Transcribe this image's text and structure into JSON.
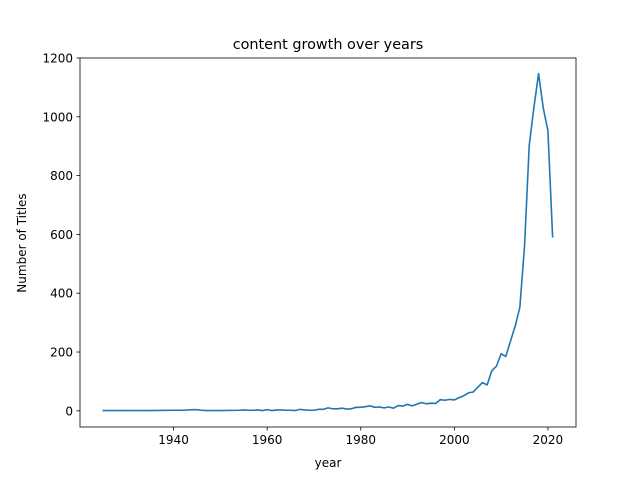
{
  "chart_data": {
    "type": "line",
    "title": "content growth over years",
    "xlabel": "year",
    "ylabel": "Number of Titles",
    "xlim": [
      1920,
      2026
    ],
    "ylim": [
      -55,
      1200
    ],
    "grid": false,
    "legend": "none",
    "xticks": [
      1940,
      1960,
      1980,
      2000,
      2020
    ],
    "xtick_labels": [
      "1940",
      "1960",
      "1980",
      "2000",
      "2020"
    ],
    "yticks": [
      0,
      200,
      400,
      600,
      800,
      1000,
      1200
    ],
    "ytick_labels": [
      "0",
      "200",
      "400",
      "600",
      "800",
      "1000",
      "1200"
    ],
    "series": [
      {
        "color": "#1f77b4",
        "x": [
          1925,
          1930,
          1935,
          1940,
          1942,
          1944,
          1945,
          1946,
          1947,
          1950,
          1954,
          1955,
          1956,
          1957,
          1958,
          1959,
          1960,
          1961,
          1962,
          1963,
          1964,
          1965,
          1966,
          1967,
          1968,
          1969,
          1970,
          1971,
          1972,
          1973,
          1974,
          1975,
          1976,
          1977,
          1978,
          1979,
          1980,
          1981,
          1982,
          1983,
          1984,
          1985,
          1986,
          1987,
          1988,
          1989,
          1990,
          1991,
          1992,
          1993,
          1994,
          1995,
          1996,
          1997,
          1998,
          1999,
          2000,
          2001,
          2002,
          2003,
          2004,
          2005,
          2006,
          2007,
          2008,
          2009,
          2010,
          2011,
          2012,
          2013,
          2014,
          2015,
          2016,
          2017,
          2018,
          2019,
          2020,
          2021
        ],
        "y": [
          1,
          1,
          1,
          2,
          2,
          4,
          4,
          2,
          1,
          1,
          2,
          3,
          2,
          2,
          3,
          1,
          4,
          1,
          3,
          3,
          2,
          2,
          1,
          5,
          3,
          2,
          2,
          5,
          5,
          10,
          7,
          7,
          9,
          6,
          7,
          12,
          12,
          14,
          17,
          12,
          13,
          10,
          13,
          9,
          18,
          16,
          22,
          17,
          23,
          28,
          24,
          26,
          25,
          38,
          36,
          39,
          37,
          45,
          51,
          61,
          64,
          80,
          96,
          88,
          136,
          152,
          194,
          185,
          237,
          288,
          352,
          560,
          902,
          1032,
          1147,
          1030,
          953,
          592
        ]
      }
    ]
  }
}
